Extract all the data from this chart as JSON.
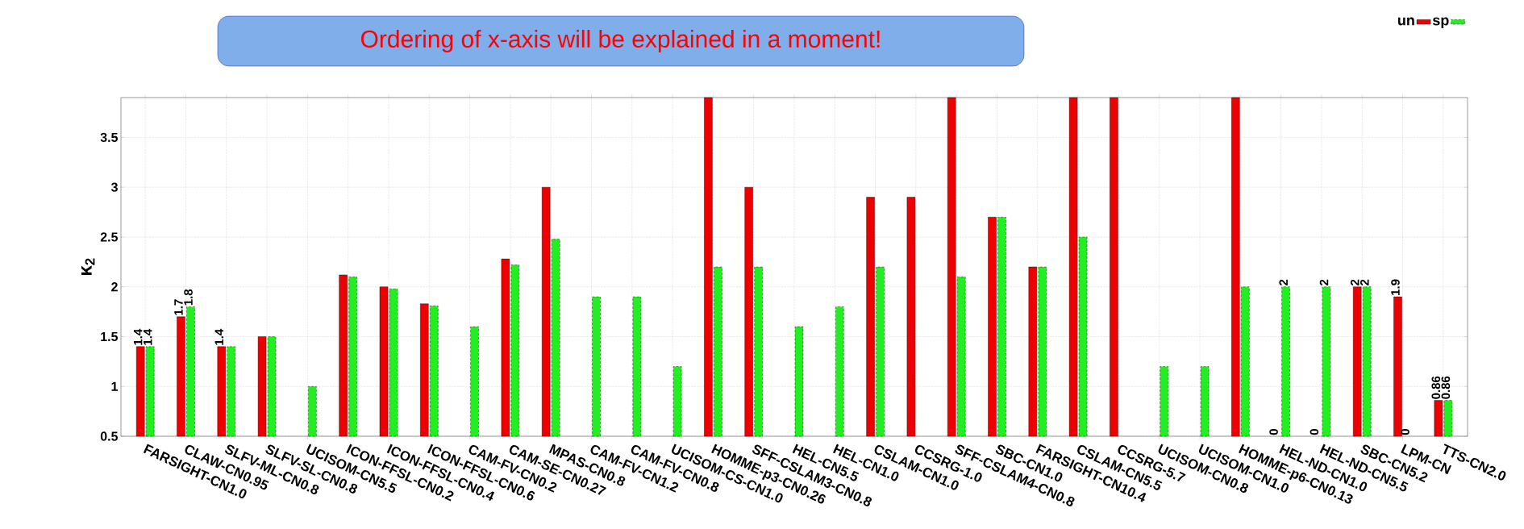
{
  "chart_data": {
    "type": "bar",
    "ylabel": "κ$_{2}$",
    "annotations": [
      "Ordering of x-axis will be explained in a moment!"
    ],
    "categories": [
      "FARSIGHT-CN1.0",
      "CLAW-CN0.95",
      "SLFV-ML-CN0.8",
      "SLFV-SL-CN0.8",
      "UCISOM-CN5.5",
      "ICON-FFSL-CN0.2",
      "ICON-FFSL-CN0.4",
      "ICON-FFSL-CN0.6",
      "CAM-FV-CN0.2",
      "CAM-SE-CN0.27",
      "MPAS-CN0.8",
      "CAM-FV-CN1.2",
      "CAM-FV-CN0.8",
      "UCISOM-CS-CN1.0",
      "HOMME-p3-CN0.26",
      "SFF-CSLAM3-CN0.8",
      "HEL-CN5.5",
      "HEL-CN1.0",
      "CSLAM-CN1.0",
      "CCSRG-1.0",
      "SFF-CSLAM4-CN0.8",
      "SBC-CN1.0",
      "FARSIGHT-CN10.4",
      "CSLAM-CN5.5",
      "CCSRG-5.7",
      "UCISOM-CN0.8",
      "UCISOM-CN1.0",
      "HOMME-p6-CN0.13",
      "HEL-ND-CN1.0",
      "HEL-ND-CN5.5",
      "SBC-CN5.2",
      "LPM-CN",
      "TTS-CN2.0"
    ],
    "series": [
      {
        "name": "un",
        "color": "#ee0000",
        "values": [
          1.4,
          1.7,
          1.4,
          1.5,
          null,
          2.12,
          2.0,
          1.83,
          null,
          2.28,
          3.0,
          null,
          null,
          null,
          3.9,
          3.0,
          null,
          null,
          2.9,
          2.9,
          3.9,
          2.7,
          2.2,
          3.9,
          3.9,
          null,
          null,
          3.9,
          null,
          null,
          2.0,
          1.9,
          0.86
        ],
        "value_labels": [
          "1.4",
          "1.7",
          "1.4",
          null,
          null,
          null,
          null,
          null,
          null,
          null,
          null,
          null,
          null,
          null,
          null,
          null,
          null,
          null,
          null,
          null,
          null,
          null,
          null,
          null,
          null,
          null,
          null,
          null,
          "0",
          "0",
          "2",
          "1.9",
          "0.86"
        ]
      },
      {
        "name": "sp",
        "color": "#22ee22",
        "values": [
          1.4,
          1.8,
          1.4,
          1.5,
          1.0,
          2.1,
          1.98,
          1.81,
          1.6,
          2.22,
          2.48,
          1.9,
          1.9,
          1.2,
          2.2,
          2.2,
          1.6,
          1.8,
          2.2,
          null,
          2.1,
          2.7,
          2.2,
          2.5,
          null,
          1.2,
          1.2,
          2.0,
          2.0,
          2.0,
          2.0,
          null,
          0.86
        ],
        "value_labels": [
          "1.4",
          "1.8",
          null,
          null,
          null,
          null,
          null,
          null,
          null,
          null,
          null,
          null,
          null,
          null,
          null,
          null,
          null,
          null,
          null,
          null,
          null,
          null,
          null,
          null,
          null,
          null,
          null,
          null,
          "2",
          "2",
          "2",
          "0",
          "0.86"
        ]
      }
    ],
    "ylim": [
      0.5,
      3.9
    ],
    "yticks": [
      0.5,
      1,
      1.5,
      2,
      2.5,
      3,
      3.5
    ],
    "grid": true,
    "legend": "top right"
  }
}
